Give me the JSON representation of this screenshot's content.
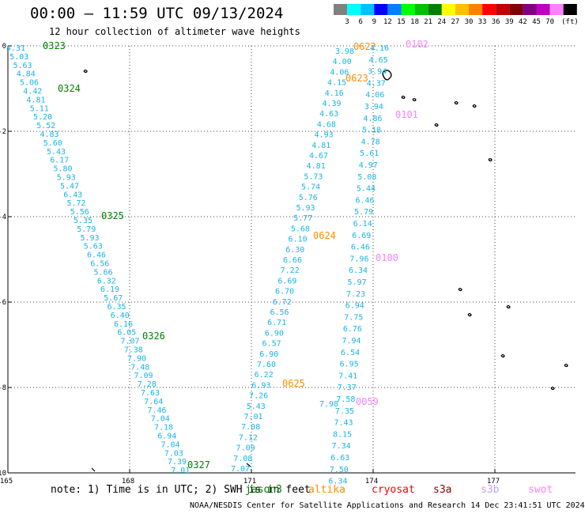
{
  "header": {
    "title": "00:00 – 11:59 UTC 09/13/2024",
    "subtitle": "12 hour collection of altimeter wave heights"
  },
  "legend": {
    "unit": "(ft)",
    "colors": [
      "#808080",
      "#00ffff",
      "#00c0ff",
      "#0000ff",
      "#0080ff",
      "#00ff00",
      "#00c000",
      "#008000",
      "#ffff00",
      "#ffc000",
      "#ff8000",
      "#ff0000",
      "#c00000",
      "#800000",
      "#800080",
      "#c000c0",
      "#ff80ff",
      "#000000"
    ],
    "labels": [
      "3",
      "6",
      "9",
      "12",
      "15",
      "18",
      "21",
      "24",
      "27",
      "30",
      "33",
      "36",
      "39",
      "42",
      "45",
      "70"
    ]
  },
  "axes": {
    "lat_ticks": [
      "0",
      "-2",
      "-4",
      "-6",
      "-8",
      "-10"
    ],
    "lon_ticks": [
      "165",
      "168",
      "171",
      "174",
      "177"
    ]
  },
  "footer": {
    "note": "note: 1) Time is in UTC; 2) SWH is in feet",
    "credit": "NOAA/NESDIS Center for Satellite Applications and Research    14 Dec 23:41:51 UTC 2024",
    "satellites": [
      {
        "name": "jason3",
        "color": "#008000"
      },
      {
        "name": "altika",
        "color": "#ff8c00"
      },
      {
        "name": "cryosat",
        "color": "#ff0000"
      },
      {
        "name": "s3a",
        "color": "#8b0000"
      },
      {
        "name": "s3b",
        "color": "#c0a0ff"
      },
      {
        "name": "swot",
        "color": "#ff80ff"
      }
    ]
  },
  "tracks": [
    {
      "values": [
        "4.31",
        "5.03",
        "5.63",
        "4.84",
        "5.06",
        "4.42",
        "4.81",
        "5.11",
        "5.20",
        "5.52",
        "4.83",
        "5.60",
        "5.43",
        "6.17",
        "5.80",
        "5.93",
        "5.47",
        "6.43",
        "5.72",
        "5.56",
        "5.35",
        "5.79",
        "5.93",
        "5.63",
        "6.46",
        "6.56",
        "5.66",
        "6.32",
        "6.19",
        "5.67",
        "6.35",
        "6.40",
        "6.16",
        "6.05",
        "7.07",
        "7.38",
        "7.90",
        "7.48",
        "7.09",
        "7.28",
        "7.63",
        "7.64",
        "7.46",
        "7.04",
        "7.18",
        "6.94",
        "7.04",
        "7.03",
        "7.39",
        "7.01"
      ],
      "time_labels": [
        {
          "text": "0323",
          "sat": "jason3"
        },
        {
          "text": "0324",
          "sat": "jason3"
        },
        {
          "text": "0325",
          "sat": "jason3"
        },
        {
          "text": "0326",
          "sat": "jason3"
        },
        {
          "text": "0327",
          "sat": "jason3"
        }
      ]
    },
    {
      "values": [
        "3.98",
        "4.00",
        "4.06",
        "4.15",
        "4.16",
        "4.39",
        "4.63",
        "4.68",
        "4.93",
        "4.81",
        "4.67",
        "4.81",
        "5.73",
        "5.74",
        "5.76",
        "5.93",
        "5.77",
        "5.68",
        "6.10",
        "6.30",
        "6.66",
        "7.22",
        "6.69",
        "6.70",
        "6.72",
        "6.56",
        "6.71",
        "6.90",
        "6.57",
        "6.90",
        "7.60",
        "6.22",
        "6.93",
        "7.26",
        "5.43",
        "7.01",
        "7.08",
        "7.12",
        "7.09",
        "7.08",
        "7.07"
      ],
      "time_labels": [
        {
          "text": "0622",
          "sat": "altika"
        },
        {
          "text": "0623",
          "sat": "altika"
        },
        {
          "text": "0624",
          "sat": "altika"
        },
        {
          "text": "0625",
          "sat": "altika"
        }
      ]
    },
    {
      "values": [
        "4.16",
        "4.65",
        "3.94",
        "4.37",
        "4.06",
        "3.94",
        "4.86",
        "5.18",
        "4.78",
        "5.61",
        "4.97",
        "5.08",
        "5.44",
        "6.46",
        "5.79",
        "6.14",
        "6.69",
        "6.46",
        "7.96",
        "6.34",
        "5.97",
        "7.23",
        "6.94",
        "7.75",
        "6.76",
        "7.94",
        "6.54",
        "6.95",
        "7.41",
        "7.37",
        "7.58",
        "7.35",
        "7.43",
        "8.15",
        "7.34",
        "6.63",
        "7.50",
        "6.34"
      ],
      "time_labels": [
        {
          "text": "0102",
          "sat": "swot"
        },
        {
          "text": "0101",
          "sat": "swot"
        },
        {
          "text": "0100",
          "sat": "swot"
        },
        {
          "text": "0059",
          "sat": "swot"
        }
      ]
    },
    {
      "values": [
        "7.98"
      ],
      "time_labels": []
    }
  ]
}
